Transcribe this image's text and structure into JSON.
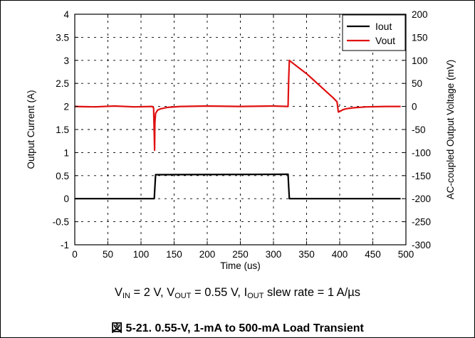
{
  "chart_data": {
    "type": "line",
    "x_axis": {
      "label": "Time (us)",
      "range": [
        0,
        500
      ],
      "ticks": [
        0,
        50,
        100,
        150,
        200,
        250,
        300,
        350,
        400,
        450,
        500
      ]
    },
    "y_axis_left": {
      "label": "Output Current (A)",
      "range": [
        -1,
        4
      ],
      "ticks": [
        "-1",
        "-0.5",
        "0",
        "0.5",
        "1",
        "1.5",
        "2",
        "2.5",
        "3",
        "3.5",
        "4"
      ]
    },
    "y_axis_right": {
      "label": "AC-coupled Output Voltage (mV)",
      "range": [
        -300,
        200
      ],
      "ticks": [
        "-300",
        "-250",
        "-200",
        "-150",
        "-100",
        "-50",
        "0",
        "50",
        "100",
        "150",
        "200"
      ]
    },
    "grid": true,
    "legend_position": "top-right",
    "series": [
      {
        "name": "Iout",
        "axis": "left",
        "color": "#000000",
        "points": [
          [
            0,
            0
          ],
          [
            120,
            0
          ],
          [
            121,
            0.25
          ],
          [
            122,
            0.52
          ],
          [
            322,
            0.53
          ],
          [
            323,
            0.25
          ],
          [
            324,
            0
          ],
          [
            492,
            0
          ]
        ]
      },
      {
        "name": "Vout",
        "axis": "right",
        "color": "#e01010",
        "points": [
          [
            0,
            0
          ],
          [
            30,
            -1
          ],
          [
            60,
            1
          ],
          [
            90,
            -1
          ],
          [
            117,
            0
          ],
          [
            119,
            -3
          ],
          [
            120,
            -60
          ],
          [
            120.5,
            -95
          ],
          [
            121,
            -35
          ],
          [
            122,
            -15
          ],
          [
            125,
            -8
          ],
          [
            130,
            -5
          ],
          [
            140,
            -2
          ],
          [
            160,
            0
          ],
          [
            200,
            1
          ],
          [
            250,
            0
          ],
          [
            300,
            1
          ],
          [
            322,
            0
          ],
          [
            323,
            60
          ],
          [
            324,
            100
          ],
          [
            330,
            93
          ],
          [
            340,
            82
          ],
          [
            350,
            71
          ],
          [
            360,
            58
          ],
          [
            370,
            45
          ],
          [
            380,
            32
          ],
          [
            390,
            19
          ],
          [
            396,
            10
          ],
          [
            398,
            -12
          ],
          [
            400,
            -11
          ],
          [
            405,
            -7
          ],
          [
            410,
            -5
          ],
          [
            420,
            -3
          ],
          [
            440,
            -1
          ],
          [
            470,
            0
          ],
          [
            492,
            0
          ]
        ]
      }
    ],
    "condition_note": {
      "parts": [
        {
          "t": "V"
        },
        {
          "t": "IN",
          "sub": true
        },
        {
          "t": " = 2 V, V"
        },
        {
          "t": "OUT",
          "sub": true
        },
        {
          "t": " = 0.55 V, I"
        },
        {
          "t": "OUT",
          "sub": true
        },
        {
          "t": " slew rate = 1 A/µs"
        }
      ]
    },
    "caption": "図 5-21. 0.55-V, 1-mA to 500-mA Load Transient"
  }
}
